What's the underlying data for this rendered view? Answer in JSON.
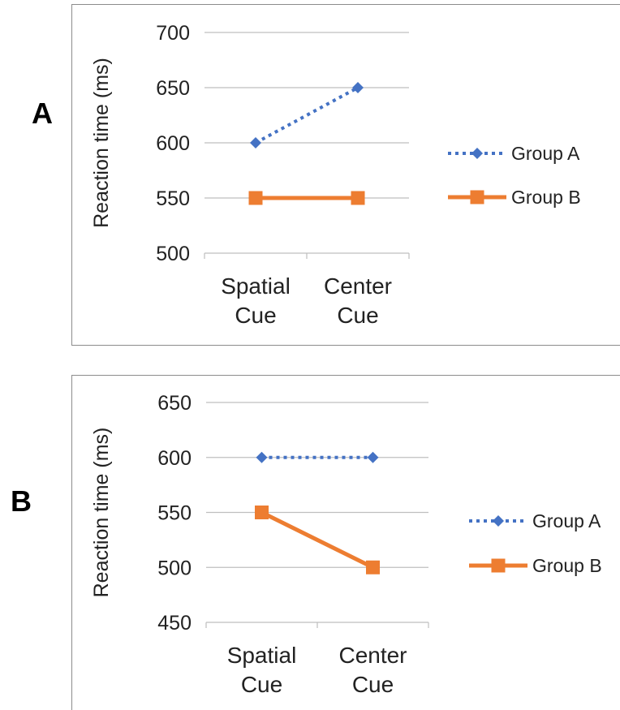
{
  "colors": {
    "group_a": "#4472C4",
    "group_b": "#ED7D31",
    "grid": "#BFBFBF",
    "frame": "#8C8C8C"
  },
  "chart_data": [
    {
      "panel_label": "A",
      "type": "line",
      "categories": [
        [
          "Spatial",
          "Cue"
        ],
        [
          "Center",
          "Cue"
        ]
      ],
      "ylabel": "Reaction time (ms)",
      "ylim": [
        500,
        700
      ],
      "yticks": [
        500,
        550,
        600,
        650,
        700
      ],
      "grid": true,
      "legend_placement": "right",
      "series": [
        {
          "name": "Group A",
          "values": [
            600,
            650
          ],
          "style": "dotted",
          "marker": "diamond",
          "color": "#4472C4"
        },
        {
          "name": "Group B",
          "values": [
            550,
            550
          ],
          "style": "solid",
          "marker": "square",
          "color": "#ED7D31"
        }
      ]
    },
    {
      "panel_label": "B",
      "type": "line",
      "categories": [
        [
          "Spatial",
          "Cue"
        ],
        [
          "Center",
          "Cue"
        ]
      ],
      "ylabel": "Reaction time (ms)",
      "ylim": [
        450,
        650
      ],
      "yticks": [
        450,
        500,
        550,
        600,
        650
      ],
      "grid": true,
      "legend_placement": "right",
      "series": [
        {
          "name": "Group A",
          "values": [
            600,
            600
          ],
          "style": "dotted",
          "marker": "diamond",
          "color": "#4472C4"
        },
        {
          "name": "Group B",
          "values": [
            550,
            500
          ],
          "style": "solid",
          "marker": "square",
          "color": "#ED7D31"
        }
      ]
    }
  ]
}
